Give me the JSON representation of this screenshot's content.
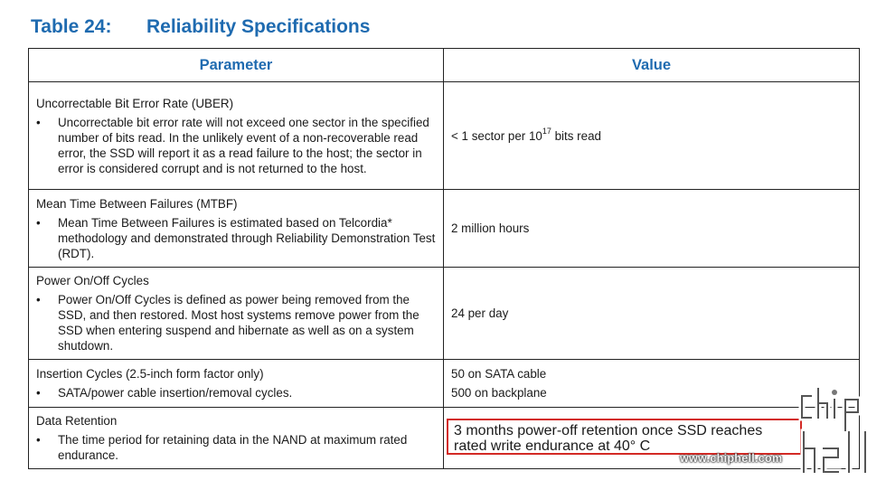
{
  "title": {
    "number": "Table 24:",
    "text": "Reliability Specifications"
  },
  "headers": {
    "parameter": "Parameter",
    "value": "Value"
  },
  "rows": [
    {
      "name": "Uncorrectable Bit Error Rate (UBER)",
      "bullet": "Uncorrectable bit error rate will not exceed one sector in the specified number of bits read. In the unlikely event of a non-recoverable read error, the SSD will report it as a read failure to the host; the sector in error is considered corrupt and is not returned to the host.",
      "value_prefix": "< 1 sector per 10",
      "value_exp": "17",
      "value_suffix": " bits read"
    },
    {
      "name": "Mean Time Between Failures (MTBF)",
      "bullet": "Mean Time Between Failures is estimated based on Telcordia* methodology and demonstrated through Reliability Demonstration Test (RDT).",
      "value": "2 million hours"
    },
    {
      "name": "Power On/Off Cycles",
      "bullet": "Power On/Off Cycles is defined as power being removed from the SSD, and then restored. Most host systems remove power from the SSD when entering suspend and hibernate as well as on a system shutdown.",
      "value": "24 per day"
    },
    {
      "name": "Insertion Cycles (2.5-inch form factor only)",
      "bullet": "SATA/power cable insertion/removal cycles.",
      "value_line1": "50 on SATA cable",
      "value_line2": "500 on backplane"
    },
    {
      "name": "Data Retention",
      "bullet": "The time period for retaining data in the NAND at maximum rated endurance.",
      "value": "3 months power-off retention once SSD reaches rated write endurance at 40° C"
    }
  ],
  "bullet_char": "•",
  "watermark": {
    "site": "www.chiphell.com",
    "logo_text": "chip hell"
  },
  "colors": {
    "heading": "#1f6bb0",
    "highlight_border": "#d32a25"
  }
}
